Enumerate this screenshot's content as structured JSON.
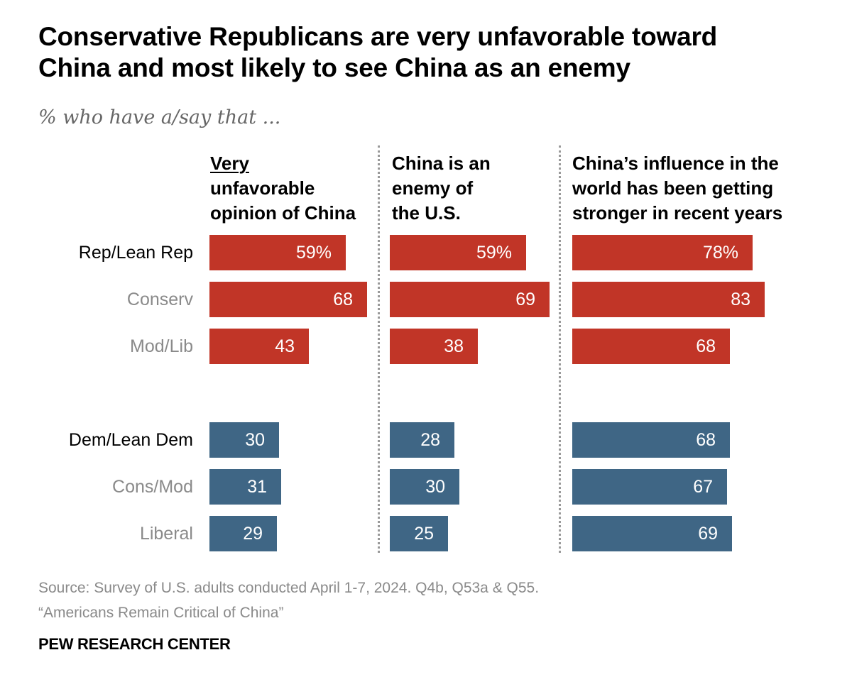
{
  "title_line1": "Conservative Republicans are very unfavorable toward",
  "title_line2": "China and most likely to see China as an enemy",
  "subtitle": "% who have a/say that ...",
  "source_line1": "Source: Survey of U.S. adults conducted April 1-7, 2024. Q4b, Q53a & Q55.",
  "source_line2": "“Americans Remain Critical of China”",
  "brand": "PEW RESEARCH CENTER",
  "colors": {
    "rep": "#c13527",
    "dem": "#3f6685"
  },
  "chart_data": {
    "type": "bar",
    "orientation": "horizontal",
    "title": "Conservative Republicans are very unfavorable toward China and most likely to see China as an enemy",
    "subtitle": "% who have a/say that ...",
    "xlim": [
      0,
      100
    ],
    "grid": false,
    "categories": [
      "Rep/Lean Rep",
      "Conserv",
      "Mod/Lib",
      "Dem/Lean Dem",
      "Cons/Mod",
      "Liberal"
    ],
    "category_roles": [
      "primary",
      "sub",
      "sub",
      "primary",
      "sub",
      "sub"
    ],
    "category_party": [
      "rep",
      "rep",
      "rep",
      "dem",
      "dem",
      "dem"
    ],
    "panels": [
      {
        "header_lines": [
          "Very",
          "unfavorable",
          "opinion of China"
        ],
        "underlined_word": "Very",
        "values": [
          59,
          68,
          43,
          30,
          31,
          29
        ],
        "labels": [
          "59%",
          "68",
          "43",
          "30",
          "31",
          "29"
        ]
      },
      {
        "header_lines": [
          "China is an",
          "enemy of",
          "the U.S."
        ],
        "values": [
          59,
          69,
          38,
          28,
          30,
          25
        ],
        "labels": [
          "59%",
          "69",
          "38",
          "28",
          "30",
          "25"
        ]
      },
      {
        "header_lines": [
          "China’s influence in the",
          "world has been getting",
          "stronger in recent years"
        ],
        "values": [
          78,
          83,
          68,
          68,
          67,
          69
        ],
        "labels": [
          "78%",
          "83",
          "68",
          "68",
          "67",
          "69"
        ]
      }
    ]
  }
}
